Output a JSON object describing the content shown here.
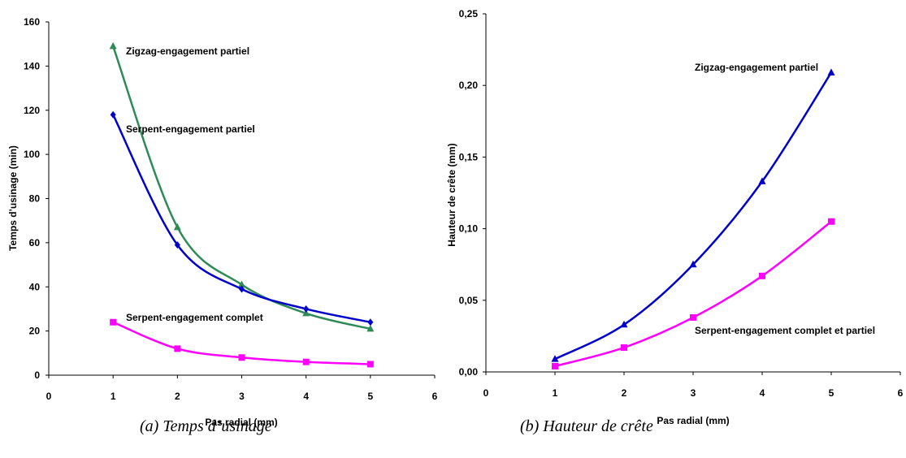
{
  "chart_data": [
    {
      "type": "line",
      "ylabel": "Temps d’usinage (min)",
      "xlabel": "Pas radial (mm)",
      "caption": "(a) Temps d’usinage",
      "xlim": [
        0,
        6
      ],
      "ylim": [
        0,
        160
      ],
      "xticks": [
        0,
        1,
        2,
        3,
        4,
        5,
        6
      ],
      "yticks": [
        0,
        20,
        40,
        60,
        80,
        100,
        120,
        140,
        160
      ],
      "x": [
        1,
        2,
        3,
        4,
        5
      ],
      "series": [
        {
          "name": "Zigzag-engagement partiel",
          "values": [
            149,
            67,
            41,
            28,
            21
          ],
          "color": "#2e8b57",
          "marker": "triangle"
        },
        {
          "name": "Serpent-engagement partiel",
          "values": [
            118,
            59,
            39,
            30,
            24
          ],
          "color": "#0000cc",
          "marker": "diamond"
        },
        {
          "name": "Serpent-engagement complet",
          "values": [
            24,
            12,
            8,
            6,
            5
          ],
          "color": "#ff00ff",
          "marker": "square"
        }
      ]
    },
    {
      "type": "line",
      "ylabel": "Hauteur de crête (mm)",
      "xlabel": "Pas radial (mm)",
      "caption": "(b) Hauteur de crête",
      "xlim": [
        0,
        6
      ],
      "ylim": [
        0,
        0.25
      ],
      "xticks": [
        0,
        1,
        2,
        3,
        4,
        5,
        6
      ],
      "yticks": [
        "0,00",
        "0,05",
        "0,10",
        "0,15",
        "0,20",
        "0,25"
      ],
      "x": [
        1,
        2,
        3,
        4,
        5
      ],
      "series": [
        {
          "name": "Zigzag-engagement partiel",
          "values": [
            0.009,
            0.033,
            0.075,
            0.133,
            0.209
          ],
          "color": "#0000cc",
          "marker": "triangle"
        },
        {
          "name": "Serpent-engagement complet et partiel",
          "values": [
            0.004,
            0.017,
            0.038,
            0.067,
            0.105
          ],
          "color": "#ff00ff",
          "marker": "square"
        }
      ]
    }
  ]
}
